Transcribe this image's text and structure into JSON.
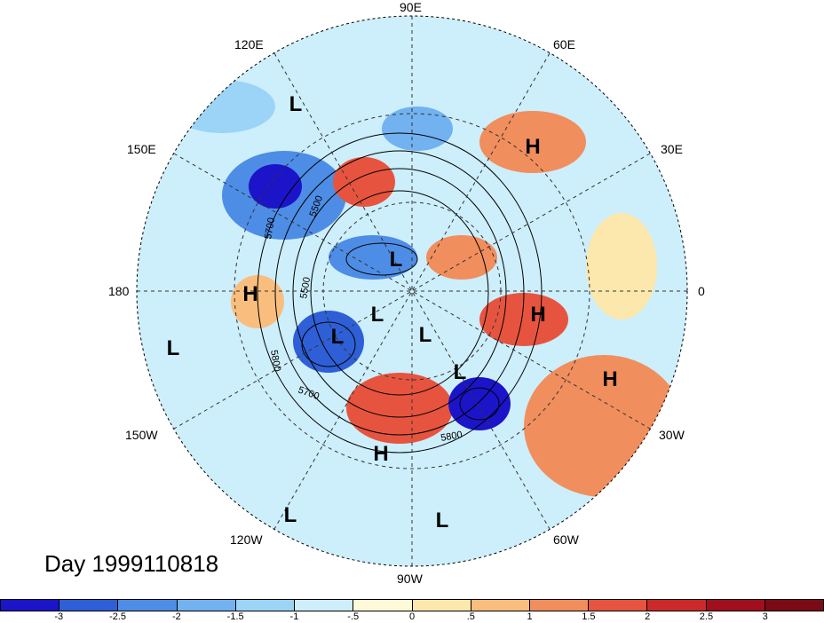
{
  "title": "Day 1999110818",
  "meridian_labels": [
    "90E",
    "60E",
    "30E",
    "0",
    "30W",
    "60W",
    "90W",
    "120W",
    "150W",
    "180",
    "150E",
    "120E"
  ],
  "contour_labels": [
    "5700",
    "5500",
    "5800",
    "5700",
    "5800",
    "5500"
  ],
  "pressure_systems": [
    {
      "label": "L"
    },
    {
      "label": "H"
    },
    {
      "label": "L"
    },
    {
      "label": "H"
    },
    {
      "label": "L"
    },
    {
      "label": "L"
    },
    {
      "label": "L"
    },
    {
      "label": "L"
    },
    {
      "label": "H"
    },
    {
      "label": "H"
    },
    {
      "label": "L"
    },
    {
      "label": "H"
    },
    {
      "label": "L"
    },
    {
      "label": "L"
    }
  ],
  "colorbar": {
    "ticks": [
      "-3",
      "-2.5",
      "-2",
      "-1.5",
      "-1",
      "-.5",
      "0",
      ".5",
      "1",
      "1.5",
      "2",
      "2.5",
      "3"
    ],
    "colors": [
      "#1c14c8",
      "#2e5fd6",
      "#4d8de6",
      "#72b2f0",
      "#9cd4f7",
      "#cdeefb",
      "#fefad8",
      "#fce7ad",
      "#f9be7e",
      "#f18e5d",
      "#e6543f",
      "#cc2a2a",
      "#a10f1d",
      "#7a0a16"
    ]
  }
}
